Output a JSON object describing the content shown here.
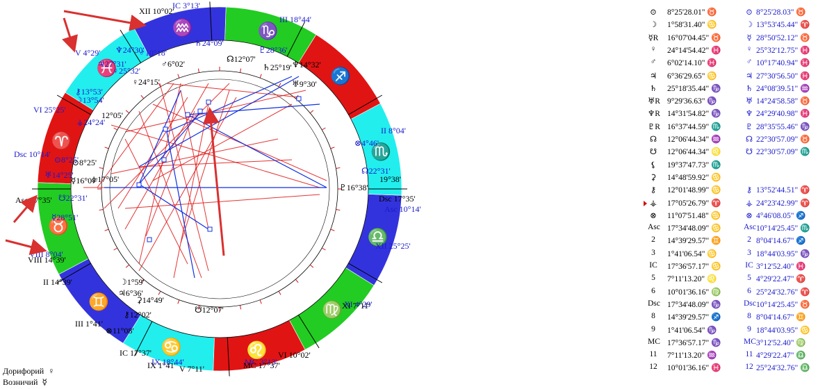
{
  "colors": {
    "fire": "#e11414",
    "earth": "#22cc22",
    "air": "#3333dd",
    "water": "#22eeee",
    "natal_text": "#000000",
    "transit_text": "#1a1acc",
    "aspect_hard": "#e01010",
    "aspect_soft": "#1030e0",
    "arrow": "#d93030"
  },
  "chart": {
    "zodiac_order": [
      "aries",
      "taurus",
      "gemini",
      "cancer",
      "leo",
      "virgo",
      "libra",
      "scorpio",
      "sagittarius",
      "capricorn",
      "aquarius",
      "pisces"
    ],
    "zodiac_glyphs": [
      "♈",
      "♉",
      "♊",
      "♋",
      "♌",
      "♍",
      "♎",
      "♏",
      "♐",
      "♑",
      "♒",
      "♓"
    ],
    "natal_cusp_labels": [
      {
        "text": "Asc 17°35'"
      },
      {
        "text": "II 14°39'"
      },
      {
        "text": "III 1°41'"
      },
      {
        "text": "IC 17°37'"
      },
      {
        "text": "V 7°11'"
      },
      {
        "text": "VI 10°02'"
      },
      {
        "text": "Dsc 17°35'"
      },
      {
        "text": "VIII 14°39'"
      },
      {
        "text": "IX 1°41'"
      },
      {
        "text": "MC 17°37'"
      },
      {
        "text": "XI 7°11'"
      },
      {
        "text": "XII 10°02'"
      }
    ],
    "transit_cusp_labels": [
      {
        "text": "Asc 10°14'"
      },
      {
        "text": "II 8°04'"
      },
      {
        "text": "III 18°44'"
      },
      {
        "text": "IC 3°13'"
      },
      {
        "text": "V 4°29'"
      },
      {
        "text": "VI 25°25'"
      },
      {
        "text": "Dsc 10°14'"
      },
      {
        "text": "VIII 8°04'"
      },
      {
        "text": "IX 18°44'"
      },
      {
        "text": "MC 3°13'"
      },
      {
        "text": "XI 4°29'"
      },
      {
        "text": "XII 25°25'"
      }
    ],
    "natal_planet_labels": [
      {
        "glyph": "⊙",
        "text": "8°25'"
      },
      {
        "glyph": "☽",
        "text": "1°59'"
      },
      {
        "glyph": "☿",
        "text": "16°07'"
      },
      {
        "glyph": "♀",
        "text": "24°15'"
      },
      {
        "glyph": "♂",
        "text": "6°02'"
      },
      {
        "glyph": "♃",
        "text": "6°36'"
      },
      {
        "glyph": "♄",
        "text": "25°19'"
      },
      {
        "glyph": "♅",
        "text": "9°30'"
      },
      {
        "glyph": "♆",
        "text": "14°32'"
      },
      {
        "glyph": "♇",
        "text": "16°38'"
      },
      {
        "glyph": "☊",
        "text": "12°07'"
      },
      {
        "glyph": "☋",
        "text": "12°07'"
      },
      {
        "glyph": "⚷",
        "text": "12°02'"
      },
      {
        "glyph": "⊗",
        "text": "11°08'"
      },
      {
        "glyph": "⚳",
        "text": "14°49'"
      },
      {
        "glyph": "⚶",
        "text": "17°05'"
      }
    ],
    "transit_planet_labels": [
      {
        "glyph": "⊙",
        "text": "8°25'"
      },
      {
        "glyph": "☽",
        "text": "13°54'"
      },
      {
        "glyph": "☿",
        "text": "28°51'"
      },
      {
        "glyph": "♀",
        "text": "25°32'"
      },
      {
        "glyph": "♂",
        "text": "10°18'"
      },
      {
        "glyph": "♃",
        "text": "27°31'"
      },
      {
        "glyph": "♄",
        "text": "24°09'"
      },
      {
        "glyph": "♅",
        "text": "14°25'"
      },
      {
        "glyph": "♆",
        "text": "24°30'"
      },
      {
        "glyph": "♇",
        "text": "28°36'"
      },
      {
        "glyph": "☊",
        "text": "22°31'"
      },
      {
        "glyph": "☋",
        "text": "22°31'"
      },
      {
        "glyph": "⚷",
        "text": "13°53'"
      },
      {
        "glyph": "⊗",
        "text": "4°46'"
      },
      {
        "glyph": "⚶",
        "text": "24°24'"
      }
    ],
    "other_labels": [
      {
        "text": "19°38'"
      },
      {
        "text": "12°05'"
      }
    ]
  },
  "table": [
    {
      "s1": "⊙",
      "v1": "8°25'28.01\" ♉",
      "s2": "⊙",
      "v2": "8°25'28.03\" ♉"
    },
    {
      "s1": "☽",
      "v1": "1°58'31.40\" ♋",
      "s2": "☽",
      "v2": "13°53'45.44\" ♈"
    },
    {
      "s1": "☿R",
      "v1": "16°07'04.45\" ♉",
      "s2": "☿",
      "v2": "28°50'52.12\" ♉"
    },
    {
      "s1": "♀",
      "v1": "24°14'54.42\" ♓",
      "s2": "♀",
      "v2": "25°32'12.75\" ♓"
    },
    {
      "s1": "♂",
      "v1": "6°02'14.10\" ♓",
      "s2": "♂",
      "v2": "10°17'40.94\" ♓"
    },
    {
      "s1": "♃",
      "v1": "6°36'29.65\" ♋",
      "s2": "♃",
      "v2": "27°30'56.50\" ♓"
    },
    {
      "s1": "♄",
      "v1": "25°18'35.44\" ♑",
      "s2": "♄",
      "v2": "24°08'39.51\" ♒"
    },
    {
      "s1": "♅R",
      "v1": "9°29'36.63\" ♑",
      "s2": "♅",
      "v2": "14°24'58.58\" ♉"
    },
    {
      "s1": "♆R",
      "v1": "14°31'54.82\" ♑",
      "s2": "♆",
      "v2": "24°29'40.98\" ♓"
    },
    {
      "s1": "♇R",
      "v1": "16°37'44.59\" ♏",
      "s2": "♇",
      "v2": "28°35'55.46\" ♑"
    },
    {
      "s1": "☊",
      "v1": "12°06'44.34\" ♒",
      "s2": "☊",
      "v2": "22°30'57.09\" ♉"
    },
    {
      "s1": "☋",
      "v1": "12°06'44.34\" ♌",
      "s2": "☋",
      "v2": "22°30'57.09\" ♏"
    },
    {
      "s1": "⚸",
      "v1": "19°37'47.73\" ♏",
      "s2": "",
      "v2": ""
    },
    {
      "s1": "⚳",
      "v1": "14°48'59.92\" ♋",
      "s2": "",
      "v2": ""
    },
    {
      "s1": "⚷",
      "v1": "12°01'48.99\" ♋",
      "s2": "⚷",
      "v2": "13°52'44.51\" ♈"
    },
    {
      "s1": "⚶",
      "v1": "17°05'26.79\" ♈",
      "s2": "⚶",
      "v2": "24°23'42.99\" ♈",
      "marker": true
    },
    {
      "s1": "⊗",
      "v1": "11°07'51.48\" ♋",
      "s2": "⊗",
      "v2": "4°46'08.05\" ♐"
    },
    {
      "s1": "Asc",
      "v1": "17°34'48.09\" ♋",
      "s2": "Asc",
      "v2": "10°14'25.45\" ♏"
    },
    {
      "s1": "2",
      "v1": "14°39'29.57\" ♊",
      "s2": "2",
      "v2": "8°04'14.67\" ♐"
    },
    {
      "s1": "3",
      "v1": "1°41'06.54\" ♋",
      "s2": "3",
      "v2": "18°44'03.95\" ♑"
    },
    {
      "s1": "IC",
      "v1": "17°36'57.17\" ♋",
      "s2": "IC",
      "v2": "3°12'52.40\" ♓"
    },
    {
      "s1": "5",
      "v1": "7°11'13.20\" ♌",
      "s2": "5",
      "v2": "4°29'22.47\" ♈"
    },
    {
      "s1": "6",
      "v1": "10°01'36.16\" ♍",
      "s2": "6",
      "v2": "25°24'32.76\" ♈"
    },
    {
      "s1": "Dsc",
      "v1": "17°34'48.09\" ♑",
      "s2": "Dsc",
      "v2": "10°14'25.45\" ♉"
    },
    {
      "s1": "8",
      "v1": "14°39'29.57\" ♐",
      "s2": "8",
      "v2": "8°04'14.67\" ♊"
    },
    {
      "s1": "9",
      "v1": "1°41'06.54\" ♑",
      "s2": "9",
      "v2": "18°44'03.95\" ♋"
    },
    {
      "s1": "MC",
      "v1": "17°36'57.17\" ♑",
      "s2": "MC",
      "v2": "3°12'52.40\" ♍"
    },
    {
      "s1": "11",
      "v1": "7°11'13.20\" ♒",
      "s2": "11",
      "v2": "4°29'22.47\" ♎"
    },
    {
      "s1": "12",
      "v1": "10°01'36.16\" ♓",
      "s2": "12",
      "v2": "25°24'32.76\" ♎"
    }
  ],
  "footer": [
    {
      "label": "Дорифорий",
      "glyph": "♀"
    },
    {
      "label": "Возничий",
      "glyph": "☿"
    }
  ]
}
